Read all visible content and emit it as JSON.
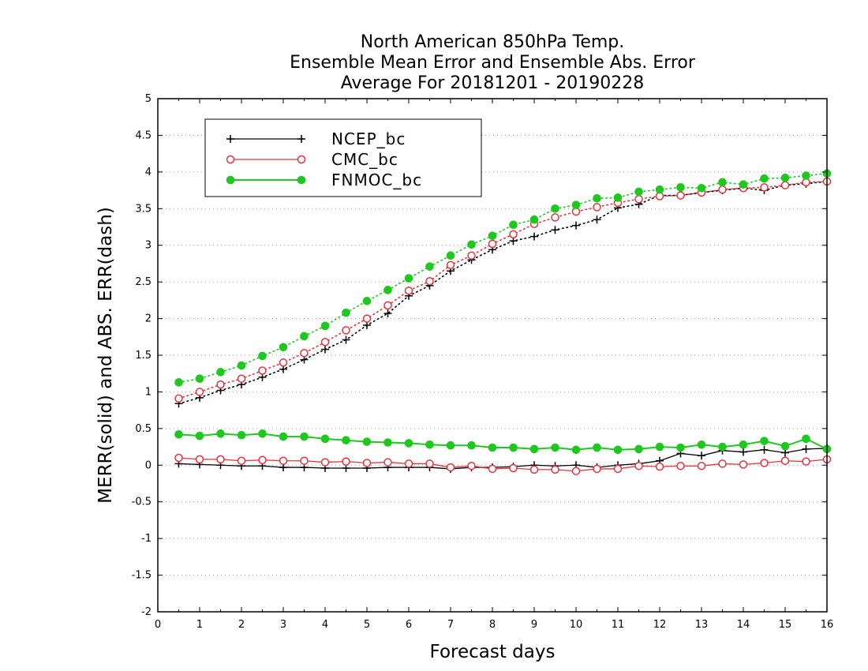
{
  "chart_data": {
    "type": "line",
    "title": [
      "North American 850hPa Temp.",
      "Ensemble Mean Error and Ensemble Abs. Error",
      "Average For 20181201 - 20190228"
    ],
    "xlabel": "Forecast days",
    "ylabel": "MERR(solid) and ABS. ERR(dash)",
    "xlim": [
      0,
      16
    ],
    "ylim": [
      -2,
      5
    ],
    "x_ticks": [
      "0",
      "1",
      "2",
      "3",
      "4",
      "5",
      "6",
      "7",
      "8",
      "9",
      "10",
      "11",
      "12",
      "13",
      "14",
      "15",
      "16"
    ],
    "y_ticks": [
      "-2",
      "-1.5",
      "-1",
      "-0.5",
      "0",
      "0.5",
      "1",
      "1.5",
      "2",
      "2.5",
      "3",
      "3.5",
      "4",
      "4.5",
      "5"
    ],
    "y_tick_values": [
      -2,
      -1.5,
      -1,
      -0.5,
      0,
      0.5,
      1,
      1.5,
      2,
      2.5,
      3,
      3.5,
      4,
      4.5,
      5
    ],
    "grid": "horizontal dotted",
    "legend_position": "top-left",
    "x": [
      0.5,
      1,
      1.5,
      2,
      2.5,
      3,
      3.5,
      4,
      4.5,
      5,
      5.5,
      6,
      6.5,
      7,
      7.5,
      8,
      8.5,
      9,
      9.5,
      10,
      10.5,
      11,
      11.5,
      12,
      12.5,
      13,
      13.5,
      14,
      14.5,
      15,
      15.5,
      16
    ],
    "series": [
      {
        "name": "NCEP_bc",
        "color": "#000000",
        "marker": "plus",
        "merr": [
          0.02,
          0.01,
          0.0,
          -0.01,
          -0.01,
          -0.03,
          -0.03,
          -0.04,
          -0.04,
          -0.04,
          -0.03,
          -0.03,
          -0.03,
          -0.05,
          -0.03,
          -0.03,
          -0.02,
          0.0,
          -0.01,
          0.0,
          -0.03,
          0.0,
          0.02,
          0.06,
          0.16,
          0.13,
          0.2,
          0.18,
          0.21,
          0.17,
          0.22,
          0.23
        ],
        "abs_err": [
          0.84,
          0.92,
          1.02,
          1.1,
          1.2,
          1.31,
          1.44,
          1.58,
          1.71,
          1.91,
          2.07,
          2.31,
          2.45,
          2.65,
          2.8,
          2.94,
          3.06,
          3.12,
          3.21,
          3.27,
          3.35,
          3.51,
          3.56,
          3.68,
          3.68,
          3.72,
          3.75,
          3.78,
          3.75,
          3.82,
          3.84,
          3.87
        ]
      },
      {
        "name": "CMC_bc",
        "color": "#e8323c",
        "marker": "open-circle",
        "merr": [
          0.1,
          0.08,
          0.08,
          0.06,
          0.07,
          0.06,
          0.06,
          0.04,
          0.05,
          0.03,
          0.04,
          0.02,
          0.02,
          -0.03,
          -0.01,
          -0.05,
          -0.04,
          -0.06,
          -0.06,
          -0.08,
          -0.05,
          -0.05,
          -0.01,
          -0.02,
          -0.01,
          -0.01,
          0.02,
          0.01,
          0.03,
          0.06,
          0.05,
          0.08
        ],
        "abs_err": [
          0.91,
          1.0,
          1.1,
          1.18,
          1.29,
          1.4,
          1.53,
          1.68,
          1.84,
          2.0,
          2.18,
          2.38,
          2.51,
          2.73,
          2.86,
          3.02,
          3.15,
          3.29,
          3.38,
          3.46,
          3.52,
          3.58,
          3.63,
          3.67,
          3.68,
          3.72,
          3.76,
          3.78,
          3.79,
          3.82,
          3.86,
          3.87
        ]
      },
      {
        "name": "FNMOC_bc",
        "color": "#1ec81e",
        "marker": "filled-circle",
        "merr": [
          0.42,
          0.4,
          0.43,
          0.41,
          0.43,
          0.39,
          0.39,
          0.36,
          0.34,
          0.32,
          0.31,
          0.3,
          0.28,
          0.27,
          0.27,
          0.24,
          0.24,
          0.22,
          0.24,
          0.21,
          0.24,
          0.21,
          0.22,
          0.25,
          0.24,
          0.28,
          0.25,
          0.28,
          0.33,
          0.26,
          0.36,
          0.22
        ],
        "abs_err": [
          1.13,
          1.18,
          1.27,
          1.36,
          1.49,
          1.61,
          1.76,
          1.9,
          2.08,
          2.24,
          2.39,
          2.55,
          2.71,
          2.86,
          3.01,
          3.13,
          3.28,
          3.35,
          3.5,
          3.55,
          3.64,
          3.65,
          3.73,
          3.76,
          3.79,
          3.78,
          3.86,
          3.83,
          3.91,
          3.92,
          3.95,
          3.98
        ]
      }
    ]
  }
}
